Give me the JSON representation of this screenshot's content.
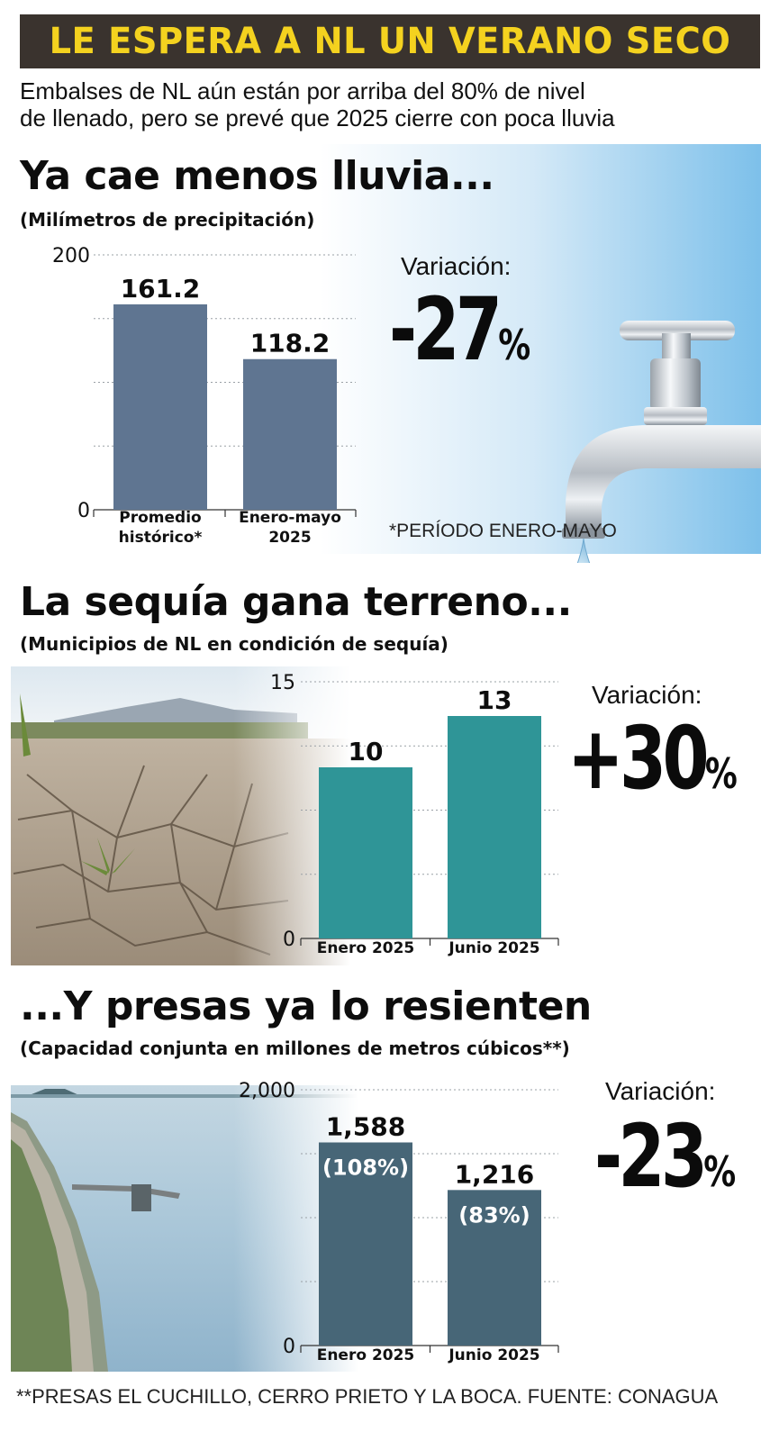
{
  "header": {
    "title": "LE ESPERA A NL UN VERANO SECO",
    "subtitle_line1": "Embalses de NL aún están por arriba del 80% de nivel",
    "subtitle_line2": "de llenado, pero se prevé que 2025 cierre con poca lluvia"
  },
  "colors": {
    "banner_bg": "#3a332e",
    "banner_text": "#f4d21f",
    "bar_rain": "#5f7591",
    "bar_drought": "#2f9597",
    "bar_dams": "#476677"
  },
  "icons": [
    "water-faucet-icon",
    "water-drop-icon",
    "cracked-earth-photo",
    "dam-reservoir-photo"
  ],
  "sections": [
    {
      "title": "Ya cae menos lluvia...",
      "subtitle": "(Milímetros de precipitación)",
      "variation_label": "Variación:",
      "variation_value": "-27",
      "variation_unit": "%",
      "note": "*PERÍODO ENERO-MAYO"
    },
    {
      "title": "La sequía gana terreno...",
      "subtitle": "(Municipios de NL en condición de sequía)",
      "variation_label": "Variación:",
      "variation_value": "+30",
      "variation_unit": "%"
    },
    {
      "title": "...Y presas ya lo resienten",
      "subtitle": "(Capacidad conjunta en millones de metros cúbicos**)",
      "variation_label": "Variación:",
      "variation_value": "-23",
      "variation_unit": "%"
    }
  ],
  "footer": {
    "source": "**PRESAS EL CUCHILLO, CERRO PRIETO Y LA BOCA. FUENTE: CONAGUA"
  },
  "chart_data": [
    {
      "type": "bar",
      "categories": [
        [
          "Promedio",
          "histórico*"
        ],
        [
          "Enero-mayo",
          "2025"
        ]
      ],
      "values": [
        161.2,
        118.2
      ],
      "value_labels": [
        "161.2",
        "118.2"
      ],
      "ylim": [
        0,
        200
      ],
      "tick_labels": [
        "0",
        "200"
      ],
      "grid": true
    },
    {
      "type": "bar",
      "categories": [
        [
          "Enero 2025"
        ],
        [
          "Junio 2025"
        ]
      ],
      "values": [
        10,
        13
      ],
      "value_labels": [
        "10",
        "13"
      ],
      "ylim": [
        0,
        15
      ],
      "tick_labels": [
        "0",
        "15"
      ],
      "grid": true
    },
    {
      "type": "bar",
      "categories": [
        [
          "Enero 2025"
        ],
        [
          "Junio 2025"
        ]
      ],
      "values": [
        1588,
        1216
      ],
      "value_labels": [
        "1,588",
        "1,216"
      ],
      "inner_labels": [
        "(108%)",
        "(83%)"
      ],
      "ylim": [
        0,
        2000
      ],
      "tick_labels": [
        "0",
        "2,000"
      ],
      "grid": true
    }
  ]
}
